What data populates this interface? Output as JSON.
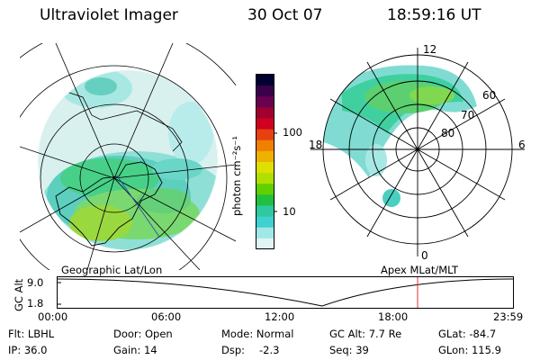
{
  "header": {
    "title": "Ultraviolet Imager",
    "date": "30 Oct 07",
    "time": "18:59:16 UT"
  },
  "colorbar": {
    "label": "photon cm⁻²s⁻¹",
    "ticks": [
      "100",
      "10"
    ],
    "colors": [
      "#000033",
      "#3a004a",
      "#6a0050",
      "#a00030",
      "#d00020",
      "#e84010",
      "#f08000",
      "#f0b000",
      "#e0e000",
      "#b0e000",
      "#60d000",
      "#20c040",
      "#30c8a0",
      "#40d0d0",
      "#a0e8e8",
      "#e0f4f4"
    ]
  },
  "left_panel": {
    "caption": "Geographic Lat/Lon"
  },
  "right_panel": {
    "caption": "Apex MLat/MLT",
    "mlt_labels": [
      "12",
      "18",
      "6",
      "0"
    ],
    "lat_labels": [
      "60",
      "70",
      "80"
    ]
  },
  "altitude_plot": {
    "ylabel": "GC Alt",
    "yticks": [
      "9.0",
      "1.8"
    ],
    "xticks": [
      "00:00",
      "06:00",
      "12:00",
      "18:00",
      "23:59"
    ],
    "current_marker_color": "#e03030"
  },
  "info": {
    "filter": "Flt: LBHL",
    "door": "Door: Open",
    "mode": "Mode: Normal",
    "gc_alt": "GC Alt: 7.7 Re",
    "glat": "GLat: -84.7",
    "ip": "IP: 36.0",
    "gain": "Gain: 14",
    "dsp_label": "Dsp:",
    "dsp_value": "-2.3",
    "seq": "Seq: 39",
    "glon": "GLon: 115.9"
  }
}
